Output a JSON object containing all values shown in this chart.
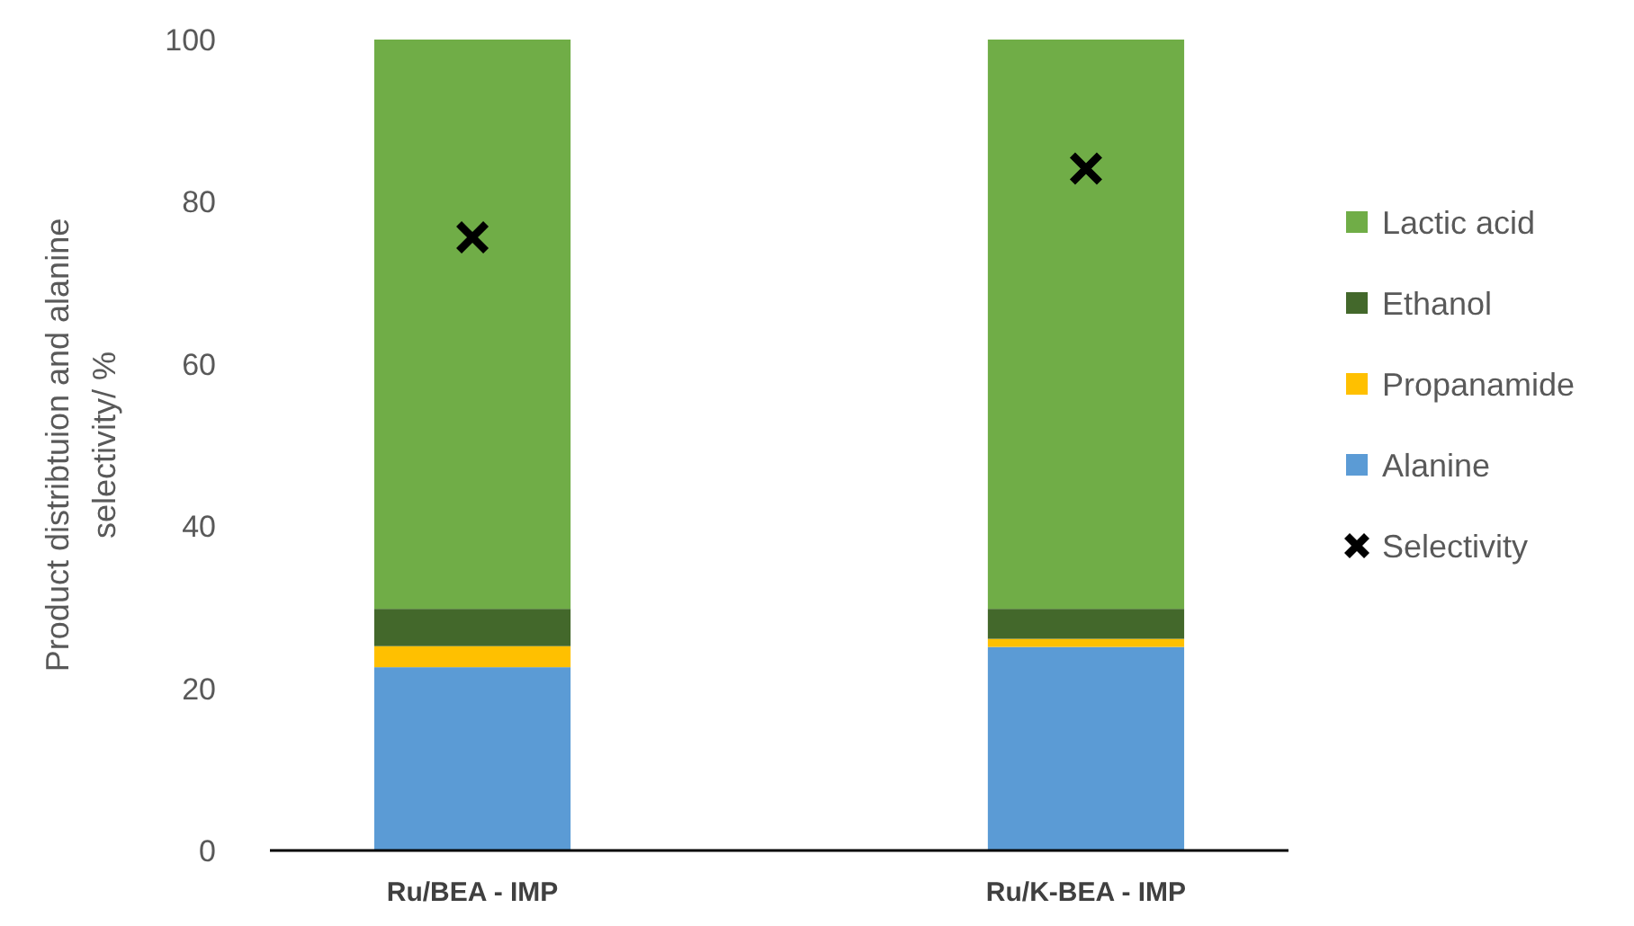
{
  "chart_data": {
    "type": "bar",
    "stacked": true,
    "ylabel": "Product distribtuion and alanine selectivity/ %",
    "categories": [
      "Ru/BEA - IMP",
      "Ru/K-BEA - IMP"
    ],
    "ylim": [
      0,
      100
    ],
    "yticks": [
      0,
      20,
      40,
      60,
      80,
      100
    ],
    "legend": "right",
    "grid": false,
    "series": [
      {
        "name": "Alanine",
        "color": "#5b9bd5",
        "values": [
          22.6,
          25.1
        ]
      },
      {
        "name": "Propanamide",
        "color": "#ffc000",
        "values": [
          2.6,
          1.0
        ]
      },
      {
        "name": "Ethanol",
        "color": "#43682b",
        "values": [
          4.6,
          3.7
        ]
      },
      {
        "name": "Lactic acid",
        "color": "#70ad47",
        "values": [
          70.2,
          70.2
        ]
      },
      {
        "name": "Selectivity",
        "type": "scatter",
        "color": "#000000",
        "marker": "cross",
        "x": [
          "Ru/BEA - IMP",
          "Ru/K-BEA - IMP"
        ],
        "values": [
          75.6,
          84.1
        ]
      }
    ]
  }
}
